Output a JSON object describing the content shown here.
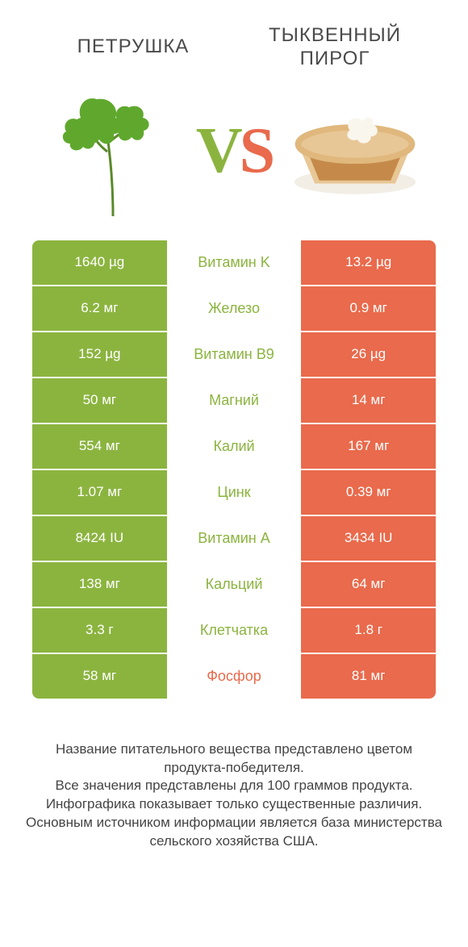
{
  "left_title": "ПЕТРУШКА",
  "right_title": "ТЫКВЕННЫЙ ПИРОГ",
  "vs_v": "V",
  "vs_s": "S",
  "colors": {
    "left": "#8bb43f",
    "right": "#e96a4c",
    "background": "#ffffff",
    "text": "#444444"
  },
  "rows": [
    {
      "left": "1640 µg",
      "label": "Витамин K",
      "right": "13.2 µg",
      "winner": "left"
    },
    {
      "left": "6.2 мг",
      "label": "Железо",
      "right": "0.9 мг",
      "winner": "left"
    },
    {
      "left": "152 µg",
      "label": "Витамин B9",
      "right": "26 µg",
      "winner": "left"
    },
    {
      "left": "50 мг",
      "label": "Магний",
      "right": "14 мг",
      "winner": "left"
    },
    {
      "left": "554 мг",
      "label": "Калий",
      "right": "167 мг",
      "winner": "left"
    },
    {
      "left": "1.07 мг",
      "label": "Цинк",
      "right": "0.39 мг",
      "winner": "left"
    },
    {
      "left": "8424 IU",
      "label": "Витамин A",
      "right": "3434 IU",
      "winner": "left"
    },
    {
      "left": "138 мг",
      "label": "Кальций",
      "right": "64 мг",
      "winner": "left"
    },
    {
      "left": "3.3 г",
      "label": "Клетчатка",
      "right": "1.8 г",
      "winner": "left"
    },
    {
      "left": "58 мг",
      "label": "Фосфор",
      "right": "81 мг",
      "winner": "right"
    }
  ],
  "footer": [
    "Название питательного вещества представлено цветом продукта-победителя.",
    "Все значения представлены для 100 граммов продукта.",
    "Инфографика показывает только существенные различия.",
    "Основным источником информации является база министерства сельского хозяйства США."
  ]
}
